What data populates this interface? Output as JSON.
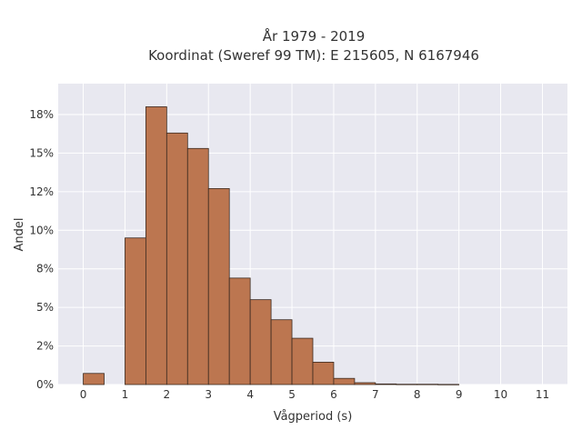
{
  "chart_data": {
    "type": "bar",
    "title_line1": "År 1979 - 2019",
    "title_line2": "Koordinat (Sweref 99 TM): E 215605, N 6167946",
    "xlabel": "Vågperiod (s)",
    "ylabel": "Andel",
    "bin_width": 0.5,
    "bins": [
      {
        "start": 0.0,
        "value": 0.72
      },
      {
        "start": 0.5,
        "value": 0.0
      },
      {
        "start": 1.0,
        "value": 9.5
      },
      {
        "start": 1.5,
        "value": 18.0
      },
      {
        "start": 2.0,
        "value": 16.3
      },
      {
        "start": 2.5,
        "value": 15.3
      },
      {
        "start": 3.0,
        "value": 12.7
      },
      {
        "start": 3.5,
        "value": 6.9
      },
      {
        "start": 4.0,
        "value": 5.5
      },
      {
        "start": 4.5,
        "value": 4.2
      },
      {
        "start": 5.0,
        "value": 3.0
      },
      {
        "start": 5.5,
        "value": 1.45
      },
      {
        "start": 6.0,
        "value": 0.4
      },
      {
        "start": 6.5,
        "value": 0.12
      },
      {
        "start": 7.0,
        "value": 0.04
      },
      {
        "start": 7.5,
        "value": 0.02
      },
      {
        "start": 8.0,
        "value": 0.02
      },
      {
        "start": 8.5,
        "value": 0.01
      }
    ],
    "xlim": [
      -0.6,
      11.6
    ],
    "ylim": [
      0,
      19.5
    ],
    "x_ticks": [
      {
        "value": 0,
        "label": "0"
      },
      {
        "value": 1,
        "label": "1"
      },
      {
        "value": 2,
        "label": "2"
      },
      {
        "value": 3,
        "label": "3"
      },
      {
        "value": 4,
        "label": "4"
      },
      {
        "value": 5,
        "label": "5"
      },
      {
        "value": 6,
        "label": "6"
      },
      {
        "value": 7,
        "label": "7"
      },
      {
        "value": 8,
        "label": "8"
      },
      {
        "value": 9,
        "label": "9"
      },
      {
        "value": 10,
        "label": "10"
      },
      {
        "value": 11,
        "label": "11"
      }
    ],
    "y_ticks": [
      {
        "value": 0,
        "label": "0%"
      },
      {
        "value": 2.5,
        "label": "2%"
      },
      {
        "value": 5,
        "label": "5%"
      },
      {
        "value": 7.5,
        "label": "8%"
      },
      {
        "value": 10,
        "label": "10%"
      },
      {
        "value": 12.5,
        "label": "12%"
      },
      {
        "value": 15,
        "label": "15%"
      },
      {
        "value": 17.5,
        "label": "18%"
      }
    ],
    "grid": true,
    "bar_color": "#bc7650",
    "bar_edge_color": "#3b2a20",
    "background_color": "#e8e8f0",
    "grid_color": "#ffffff"
  }
}
